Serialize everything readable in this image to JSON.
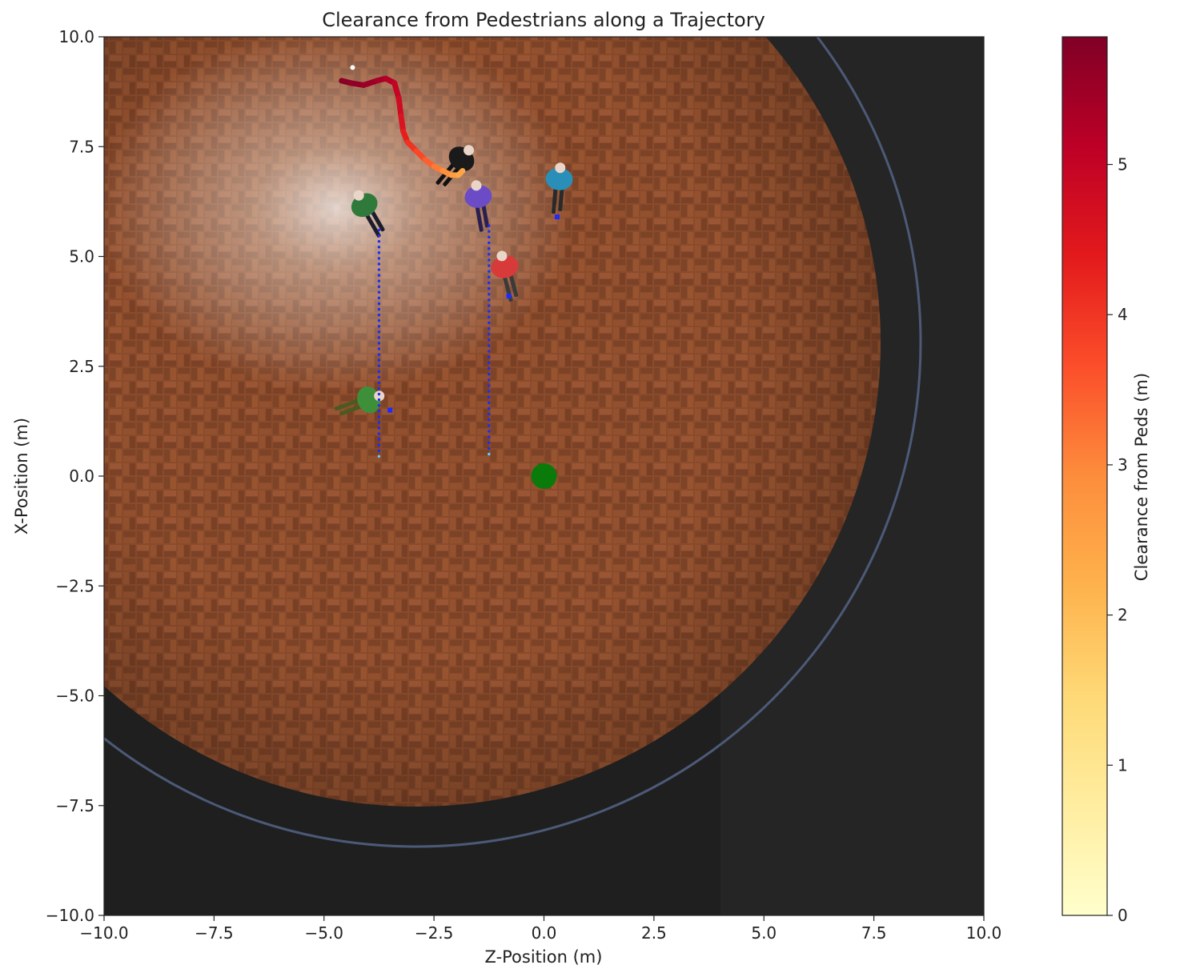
{
  "chart_data": {
    "type": "scatter",
    "title": "Clearance from Pedestrians along a Trajectory",
    "xlabel": "Z-Position (m)",
    "ylabel": "X-Position (m)",
    "xlim": [
      -10,
      10
    ],
    "ylim": [
      -10,
      10
    ],
    "xticks": [
      -10,
      -7.5,
      -5,
      -2.5,
      0,
      2.5,
      5,
      7.5,
      10
    ],
    "xtick_labels": [
      "−10.0",
      "−7.5",
      "−5.0",
      "−2.5",
      "0.0",
      "2.5",
      "5.0",
      "7.5",
      "10.0"
    ],
    "yticks": [
      10,
      7.5,
      5,
      2.5,
      0,
      -2.5,
      -5,
      -7.5,
      -10
    ],
    "ytick_labels": [
      "10.0",
      "7.5",
      "5.0",
      "2.5",
      "0.0",
      "−2.5",
      "−5.0",
      "−7.5",
      "−10.0"
    ],
    "grid": false,
    "background": "top-down simulation render with circular wooden floor and six pedestrians",
    "colorbar": {
      "label": "Clearance from Peds (m)",
      "range": [
        0,
        5.85
      ],
      "ticks": [
        0,
        1,
        2,
        3,
        4,
        5
      ],
      "tick_labels": [
        "0",
        "1",
        "2",
        "3",
        "4",
        "5"
      ],
      "colormap": "YlOrRd"
    },
    "trajectory": {
      "z": [
        -4.6,
        -4.4,
        -4.1,
        -3.8,
        -3.6,
        -3.4,
        -3.3,
        -3.25,
        -3.2,
        -3.1,
        -2.9,
        -2.7,
        -2.5,
        -2.3,
        -2.1,
        -1.95,
        -1.85
      ],
      "x": [
        9.0,
        8.95,
        8.9,
        9.0,
        9.05,
        8.95,
        8.6,
        8.2,
        7.85,
        7.6,
        7.4,
        7.2,
        7.05,
        6.95,
        6.85,
        6.85,
        6.95
      ],
      "clearance": [
        5.8,
        5.7,
        5.6,
        5.45,
        5.3,
        5.1,
        4.9,
        4.7,
        4.45,
        4.2,
        3.9,
        3.6,
        3.3,
        3.0,
        2.75,
        2.5,
        2.35
      ]
    },
    "goal": {
      "z": 0.0,
      "x": 0.0,
      "color": "#0a7a0a"
    },
    "start_marker": {
      "z": -4.35,
      "x": 9.3
    },
    "ped_paths": [
      {
        "z": -3.75,
        "x_start": 0.45,
        "x_end": 5.6
      },
      {
        "z": -1.25,
        "x_start": 0.5,
        "x_end": 5.7
      }
    ],
    "ped_markers": [
      {
        "z": 0.3,
        "x": 5.9
      },
      {
        "z": -0.8,
        "x": 4.1
      },
      {
        "z": -3.5,
        "x": 1.5
      }
    ],
    "pedestrians": [
      {
        "z": -4.1,
        "x": 6.2,
        "shirt": "#2f7a3a",
        "pants": "#1c1c2a",
        "angle": -30
      },
      {
        "z": -1.5,
        "x": 6.4,
        "shirt": "#6c4bc7",
        "pants": "#2a2050",
        "angle": -10
      },
      {
        "z": 0.35,
        "x": 6.8,
        "shirt": "#2a8fb8",
        "pants": "#2a2a2a",
        "angle": 5
      },
      {
        "z": -0.9,
        "x": 4.8,
        "shirt": "#d83a3a",
        "pants": "#3a3a3a",
        "angle": -15
      },
      {
        "z": -3.95,
        "x": 1.75,
        "shirt": "#3e8f3a",
        "pants": "#4a5a20",
        "angle": 70
      },
      {
        "z": -1.85,
        "x": 7.25,
        "shirt": "#1a1a1a",
        "pants": "#111111",
        "angle": 40
      }
    ],
    "colors": {
      "path_dots": "#1a2cff",
      "path_end": "#5fd0ff",
      "accent": "#d4a017"
    }
  }
}
